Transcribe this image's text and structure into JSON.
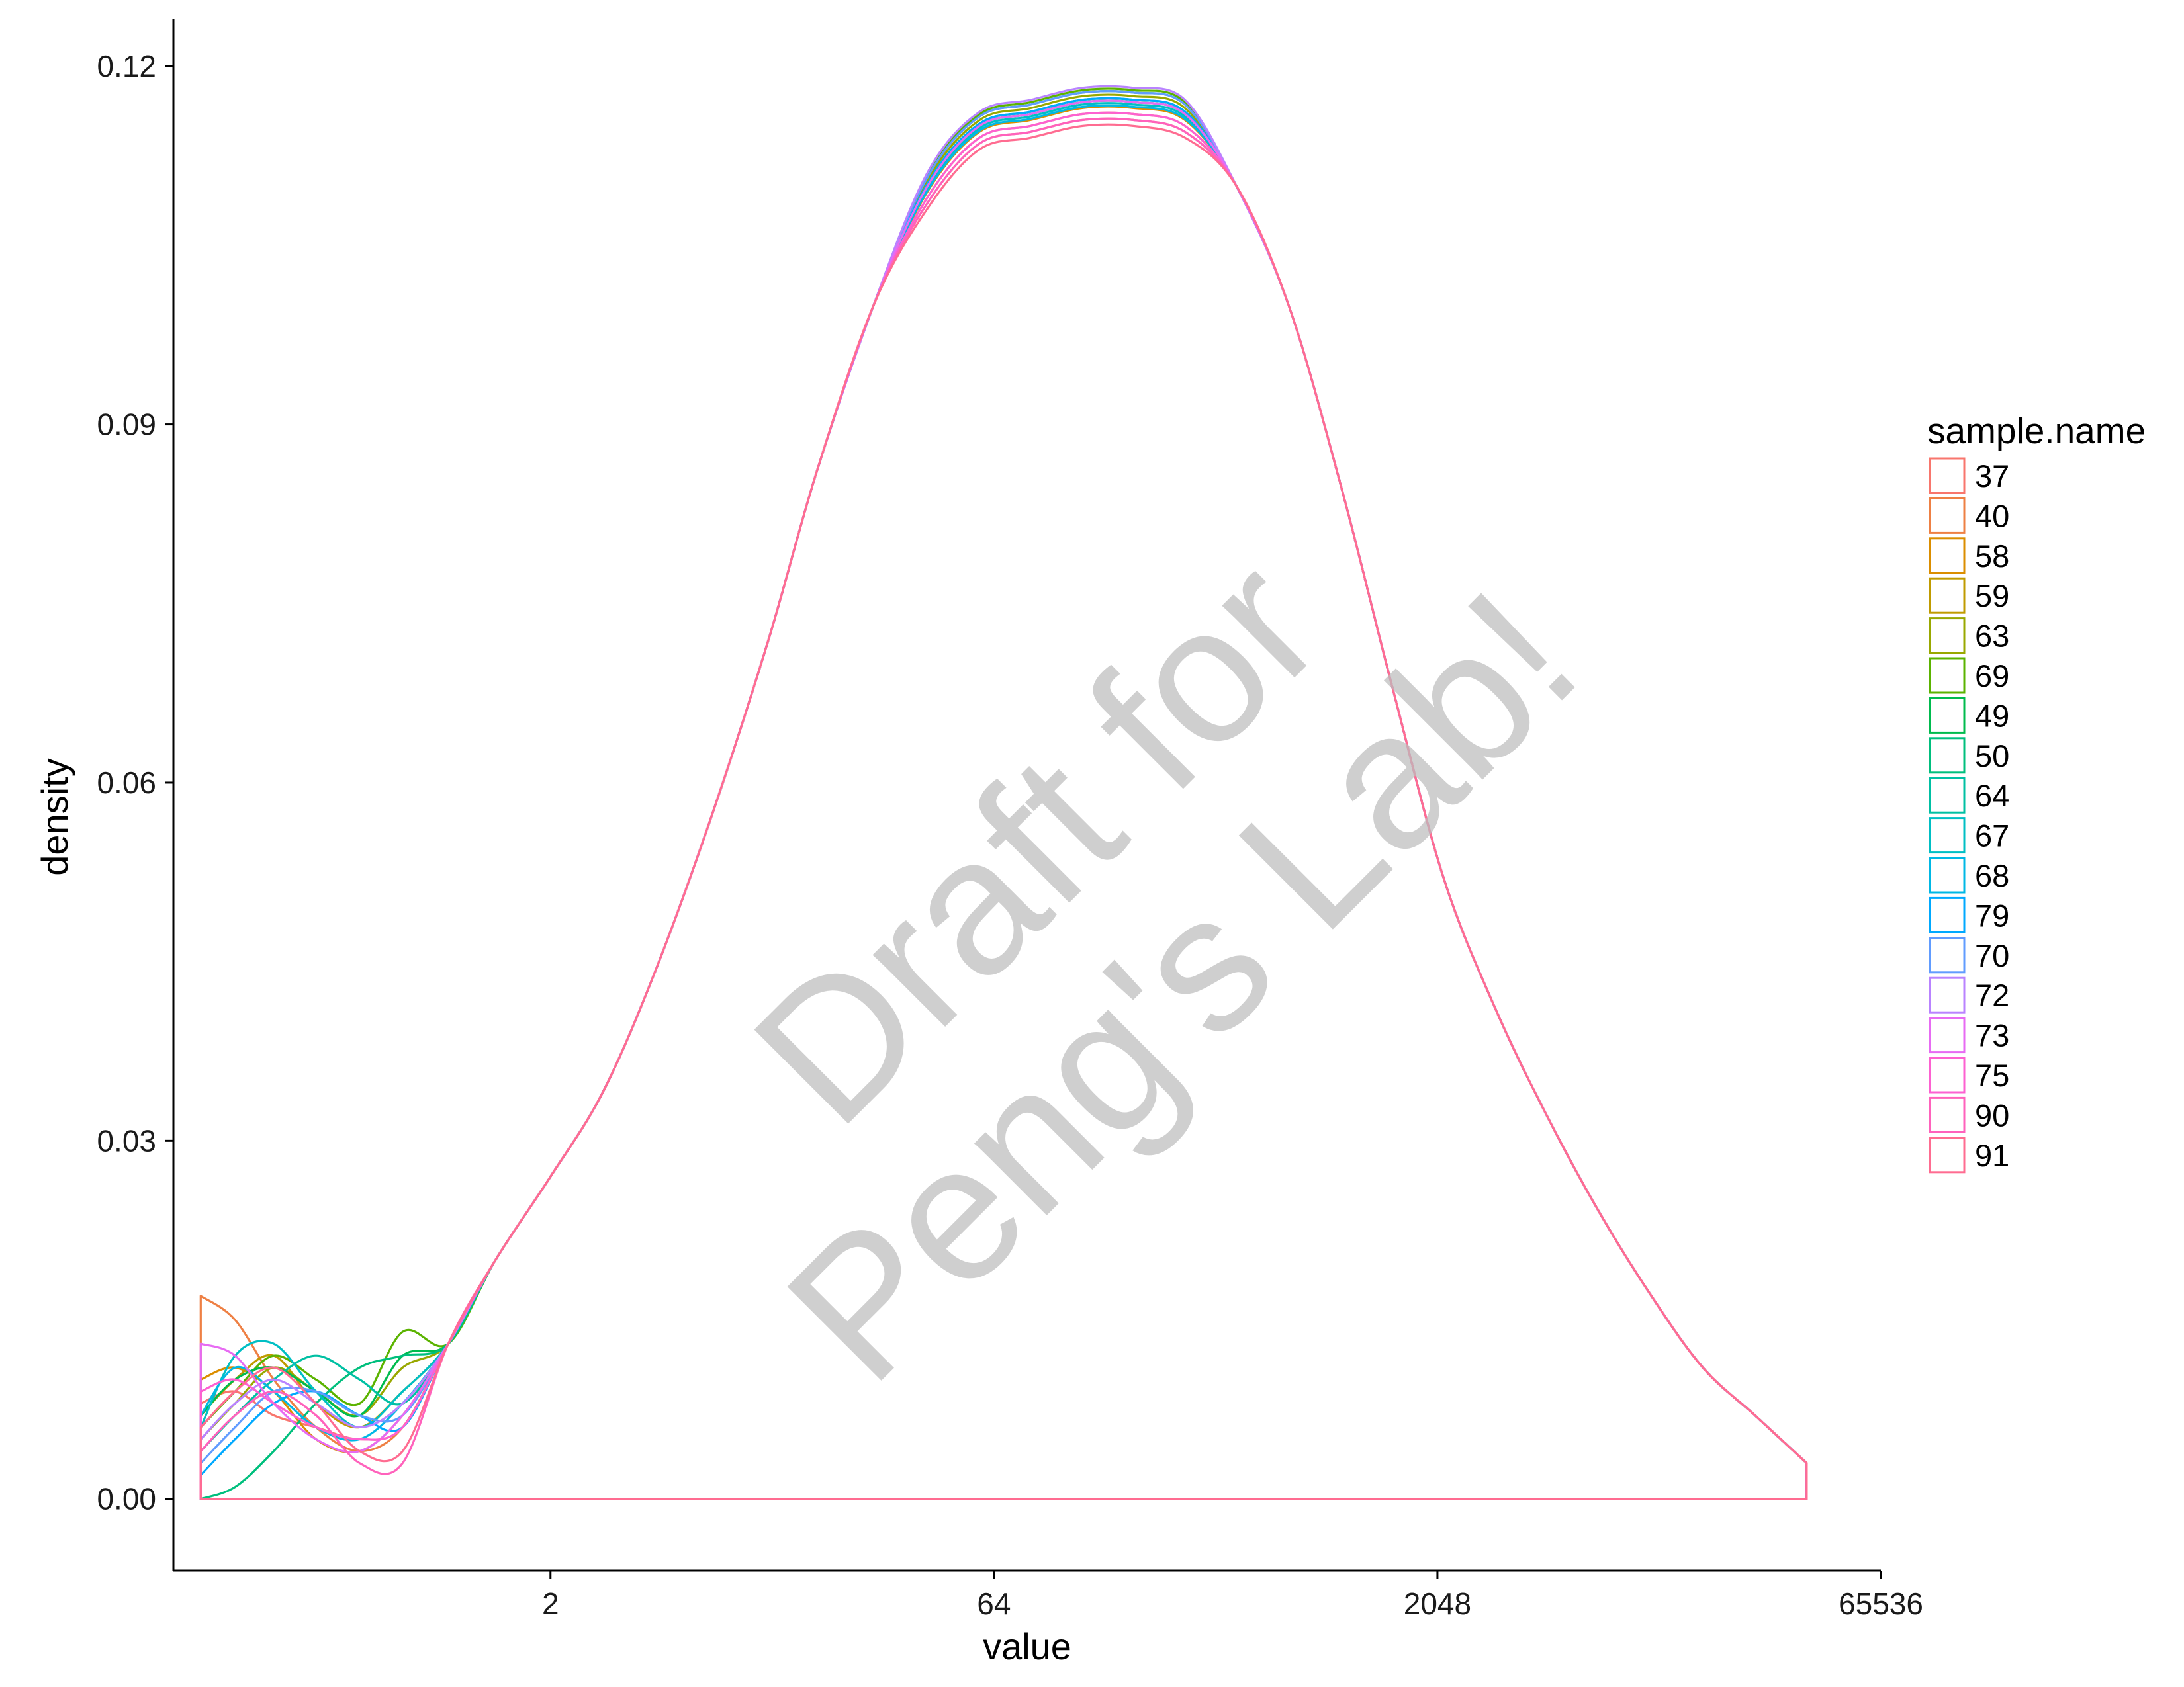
{
  "chart_data": {
    "type": "line",
    "subtype": "density",
    "title": "",
    "xlabel": "value",
    "ylabel": "density",
    "x_scale": "log2",
    "x_tick_labels": [
      "2",
      "64",
      "2048",
      "65536"
    ],
    "x_tick_values": [
      2,
      64,
      2048,
      65536
    ],
    "y_tick_labels": [
      "0.00",
      "0.03",
      "0.06",
      "0.09",
      "0.12"
    ],
    "y_tick_values": [
      0,
      0.03,
      0.06,
      0.09,
      0.12
    ],
    "xlim": [
      0.105,
      65536
    ],
    "ylim": [
      -0.006,
      0.124
    ],
    "grid": false,
    "legend": {
      "title": "sample.name",
      "placement": "right"
    },
    "x": [
      0.13,
      0.17,
      0.23,
      0.32,
      0.45,
      0.63,
      0.9,
      1.3,
      2.0,
      3.0,
      4.5,
      7.0,
      11,
      16,
      25,
      38,
      57,
      85,
      128,
      190,
      285,
      425,
      640,
      960,
      1440,
      2150,
      3230,
      4840,
      7260,
      10900,
      16300,
      24500,
      36700
    ],
    "base_curve": [
      0.006,
      0.009,
      0.011,
      0.009,
      0.007,
      0.006,
      0.013,
      0.02,
      0.027,
      0.034,
      0.044,
      0.057,
      0.072,
      0.086,
      0.1,
      0.109,
      0.114,
      0.115,
      0.116,
      0.116,
      0.115,
      0.11,
      0.1,
      0.085,
      0.068,
      0.052,
      0.041,
      0.032,
      0.024,
      0.017,
      0.011,
      0.007,
      0.003
    ],
    "series": [
      {
        "name": "37",
        "color": "#F8766D",
        "low_values": [
          0.008,
          0.009,
          0.007,
          0.006,
          0.005,
          0.006
        ],
        "peak": 0.1155
      },
      {
        "name": "40",
        "color": "#EE8044",
        "low_values": [
          0.017,
          0.015,
          0.01,
          0.006,
          0.004,
          0.006
        ],
        "peak": 0.116
      },
      {
        "name": "58",
        "color": "#DB8E00",
        "low_values": [
          0.01,
          0.011,
          0.009,
          0.005,
          0.004,
          0.007
        ],
        "peak": 0.1165
      },
      {
        "name": "59",
        "color": "#C09B00",
        "low_values": [
          0.007,
          0.01,
          0.012,
          0.008,
          0.006,
          0.009
        ],
        "peak": 0.117
      },
      {
        "name": "63",
        "color": "#99A800",
        "low_values": [
          0.005,
          0.008,
          0.011,
          0.009,
          0.007,
          0.011
        ],
        "peak": 0.1175
      },
      {
        "name": "69",
        "color": "#5BB300",
        "low_values": [
          0.006,
          0.009,
          0.012,
          0.01,
          0.008,
          0.014
        ],
        "peak": 0.118
      },
      {
        "name": "49",
        "color": "#00BB4E",
        "low_values": [
          0.007,
          0.01,
          0.011,
          0.009,
          0.007,
          0.012
        ],
        "peak": 0.1178
      },
      {
        "name": "50",
        "color": "#00BF7D",
        "low_values": [
          0.0,
          0.001,
          0.004,
          0.008,
          0.011,
          0.012
        ],
        "peak": 0.1172
      },
      {
        "name": "64",
        "color": "#00C0A3",
        "low_values": [
          0.004,
          0.007,
          0.01,
          0.012,
          0.01,
          0.008
        ],
        "peak": 0.117
      },
      {
        "name": "67",
        "color": "#00BFC4",
        "low_values": [
          0.006,
          0.012,
          0.013,
          0.009,
          0.006,
          0.009
        ],
        "peak": 0.1168
      },
      {
        "name": "68",
        "color": "#00B8E5",
        "low_values": [
          0.007,
          0.011,
          0.009,
          0.006,
          0.005,
          0.008
        ],
        "peak": 0.1166
      },
      {
        "name": "79",
        "color": "#00A9FF",
        "low_values": [
          0.002,
          0.005,
          0.008,
          0.009,
          0.007,
          0.006
        ],
        "peak": 0.1172
      },
      {
        "name": "70",
        "color": "#619CFF",
        "low_values": [
          0.003,
          0.006,
          0.009,
          0.009,
          0.007,
          0.007
        ],
        "peak": 0.1178
      },
      {
        "name": "72",
        "color": "#B983FF",
        "low_values": [
          0.005,
          0.008,
          0.01,
          0.008,
          0.006,
          0.008
        ],
        "peak": 0.1182
      },
      {
        "name": "73",
        "color": "#E76BF3",
        "low_values": [
          0.013,
          0.012,
          0.008,
          0.005,
          0.004,
          0.007
        ],
        "peak": 0.117
      },
      {
        "name": "75",
        "color": "#FD61D1",
        "low_values": [
          0.009,
          0.01,
          0.008,
          0.006,
          0.005,
          0.006
        ],
        "peak": 0.116
      },
      {
        "name": "90",
        "color": "#FF62BC",
        "low_values": [
          0.004,
          0.007,
          0.009,
          0.007,
          0.003,
          0.003
        ],
        "peak": 0.1155
      },
      {
        "name": "91",
        "color": "#FF6C91",
        "low_values": [
          0.006,
          0.009,
          0.011,
          0.008,
          0.004,
          0.004
        ],
        "peak": 0.115
      }
    ],
    "watermark": [
      "Draft for",
      "Peng's Lab!"
    ]
  }
}
